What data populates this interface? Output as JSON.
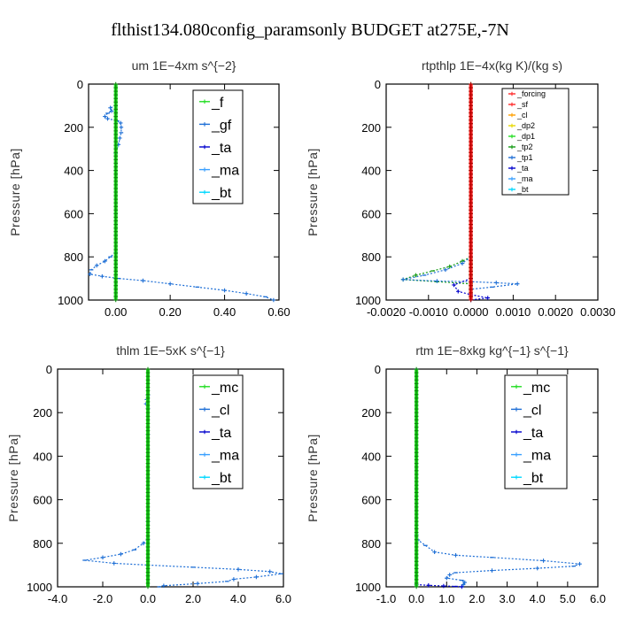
{
  "figure_title": "flthist134.080config_paramsonly  BUDGET at275E,-7N",
  "colors": {
    "green": "#22dd22",
    "blue": "#1e6fd6",
    "red": "#ff2a2a",
    "orange": "#ffa000",
    "yellow": "#e8d800",
    "navy": "#0000cc",
    "cyan": "#00d8ff",
    "dkgreen": "#129a12",
    "ltblue": "#3aa0ff"
  },
  "chart_data": [
    {
      "type": "line",
      "title": "um   1E−4xm s^{−2}",
      "ylabel": "Pressure [hPa]",
      "xlim": [
        -0.1,
        0.6
      ],
      "ylim": [
        1000,
        0
      ],
      "xticks": [
        0.0,
        0.2,
        0.4,
        0.6
      ],
      "xtick_labels": [
        "0.00",
        "0.20",
        "0.40",
        "0.60"
      ],
      "yticks": [
        0,
        200,
        400,
        600,
        800,
        1000
      ],
      "ytick_labels": [
        "0",
        "200",
        "400",
        "600",
        "800",
        "1000"
      ],
      "legend": [
        "_f",
        "_gf",
        "_ta",
        "_ma",
        "_bt"
      ],
      "legend_colors": [
        "green",
        "blue",
        "navy",
        "ltblue",
        "cyan"
      ],
      "legend_big": true,
      "series": [
        {
          "name": "_gf",
          "color": "blue",
          "points": [
            [
              0,
              100
            ],
            [
              -0.02,
              110
            ],
            [
              -0.015,
              125
            ],
            [
              -0.03,
              135
            ],
            [
              -0.04,
              150
            ],
            [
              -0.03,
              160
            ],
            [
              0.005,
              170
            ],
            [
              0.018,
              180
            ],
            [
              0.02,
              200
            ],
            [
              0.02,
              225
            ],
            [
              0.015,
              250
            ],
            [
              0.01,
              280
            ],
            [
              0,
              320
            ],
            [
              0,
              400
            ],
            [
              0,
              500
            ],
            [
              0,
              600
            ],
            [
              0,
              700
            ],
            [
              0,
              780
            ],
            [
              -0.02,
              800
            ],
            [
              -0.04,
              820
            ],
            [
              -0.07,
              840
            ],
            [
              -0.09,
              860
            ],
            [
              -0.095,
              880
            ],
            [
              -0.05,
              890
            ],
            [
              0.01,
              900
            ],
            [
              0.1,
              910
            ],
            [
              0.2,
              925
            ],
            [
              0.3,
              940
            ],
            [
              0.4,
              955
            ],
            [
              0.48,
              970
            ],
            [
              0.55,
              985
            ],
            [
              0.58,
              1000
            ]
          ]
        },
        {
          "name": "_f",
          "color": "green",
          "points": [
            [
              0,
              0
            ],
            [
              0,
              1000
            ]
          ]
        }
      ]
    },
    {
      "type": "line",
      "title": "rtpthlp   1E−4x(kg K)/(kg s)",
      "ylabel": "Pressure [hPa]",
      "xlim": [
        -0.002,
        0.003
      ],
      "ylim": [
        1000,
        0
      ],
      "xticks": [
        -0.002,
        -0.001,
        0.0,
        0.001,
        0.002,
        0.003
      ],
      "xtick_labels": [
        "-0.0020",
        "-0.0010",
        "0.0000",
        "0.0010",
        "0.0020",
        "0.0030"
      ],
      "yticks": [
        0,
        200,
        400,
        600,
        800,
        1000
      ],
      "ytick_labels": [
        "0",
        "200",
        "400",
        "600",
        "800",
        "1000"
      ],
      "legend": [
        "_forcing",
        "_sf",
        "_cl",
        "_dp2",
        "_dp1",
        "_tp2",
        "_tp1",
        "_ta",
        "_ma",
        "_bt"
      ],
      "legend_colors": [
        "red",
        "red",
        "orange",
        "yellow",
        "green",
        "dkgreen",
        "blue",
        "navy",
        "ltblue",
        "cyan"
      ],
      "legend_big": false,
      "series": [
        {
          "name": "_dp1",
          "color": "green",
          "points": [
            [
              0,
              800
            ],
            [
              0.0002,
              820
            ],
            [
              0.0006,
              845
            ],
            [
              0.0012,
              865
            ],
            [
              0.0019,
              880
            ],
            [
              0.0026,
              895
            ],
            [
              0.0016,
              905
            ],
            [
              0.0008,
              915
            ],
            [
              0.0003,
              930
            ],
            [
              -0.0004,
              945
            ],
            [
              -0.0009,
              960
            ],
            [
              -0.0004,
              980
            ],
            [
              0,
              1000
            ]
          ]
        },
        {
          "name": "_tp2",
          "color": "dkgreen",
          "points": [
            [
              0,
              800
            ],
            [
              -0.0002,
              820
            ],
            [
              -0.0005,
              845
            ],
            [
              -0.0009,
              865
            ],
            [
              -0.0013,
              885
            ],
            [
              -0.0016,
              905
            ],
            [
              -0.0008,
              915
            ],
            [
              0,
              925
            ]
          ]
        },
        {
          "name": "_tp1",
          "color": "blue",
          "points": [
            [
              0,
              800
            ],
            [
              -0.0002,
              830
            ],
            [
              -0.0006,
              860
            ],
            [
              -0.0011,
              885
            ],
            [
              -0.0016,
              905
            ],
            [
              -0.0008,
              912
            ],
            [
              0,
              915
            ],
            [
              0.0006,
              920
            ],
            [
              0.0011,
              925
            ],
            [
              0.0005,
              940
            ],
            [
              0,
              950
            ]
          ]
        },
        {
          "name": "_ta",
          "color": "navy",
          "points": [
            [
              0,
              900
            ],
            [
              -0.0004,
              930
            ],
            [
              -0.0003,
              960
            ],
            [
              0,
              975
            ],
            [
              0.0004,
              990
            ],
            [
              0,
              1000
            ]
          ]
        },
        {
          "name": "_forcing",
          "color": "red",
          "points": [
            [
              0,
              0
            ],
            [
              0,
              1000
            ]
          ]
        }
      ]
    },
    {
      "type": "line",
      "title": "thlm   1E−5xK s^{−1}",
      "ylabel": "Pressure [hPa]",
      "xlim": [
        -4,
        6
      ],
      "ylim": [
        1000,
        0
      ],
      "xticks": [
        -4,
        -2,
        0,
        2,
        4,
        6
      ],
      "xtick_labels": [
        "-4.0",
        "-2.0",
        "0.0",
        "2.0",
        "4.0",
        "6.0"
      ],
      "yticks": [
        0,
        200,
        400,
        600,
        800,
        1000
      ],
      "ytick_labels": [
        "0",
        "200",
        "400",
        "600",
        "800",
        "1000"
      ],
      "legend": [
        "_mc",
        "_cl",
        "_ta",
        "_ma",
        "_bt"
      ],
      "legend_colors": [
        "green",
        "blue",
        "navy",
        "ltblue",
        "cyan"
      ],
      "legend_big": true,
      "series": [
        {
          "name": "_cl",
          "color": "blue",
          "points": [
            [
              0,
              120
            ],
            [
              -0.05,
              140
            ],
            [
              -0.08,
              160
            ],
            [
              0,
              180
            ],
            [
              0,
              300
            ],
            [
              0,
              500
            ],
            [
              0,
              700
            ],
            [
              0,
              780
            ],
            [
              -0.2,
              800
            ],
            [
              -0.6,
              830
            ],
            [
              -1.2,
              850
            ],
            [
              -2.0,
              865
            ],
            [
              -2.8,
              878
            ],
            [
              -1.5,
              892
            ],
            [
              0,
              900
            ],
            [
              2.0,
              910
            ],
            [
              4.0,
              920
            ],
            [
              5.4,
              930
            ],
            [
              5.9,
              940
            ],
            [
              4.8,
              955
            ],
            [
              3.8,
              965
            ],
            [
              3.5,
              975
            ],
            [
              2.2,
              985
            ],
            [
              0.7,
              995
            ],
            [
              0.5,
              1000
            ]
          ]
        },
        {
          "name": "_mc",
          "color": "green",
          "points": [
            [
              0,
              0
            ],
            [
              0,
              1000
            ]
          ]
        }
      ]
    },
    {
      "type": "line",
      "title": "rtm   1E−8xkg kg^{−1} s^{−1}",
      "ylabel": "Pressure [hPa]",
      "xlim": [
        -1,
        6
      ],
      "ylim": [
        1000,
        0
      ],
      "xticks": [
        -1,
        0,
        1,
        2,
        3,
        4,
        5,
        6
      ],
      "xtick_labels": [
        "-1.0",
        "0.0",
        "1.0",
        "2.0",
        "3.0",
        "4.0",
        "5.0",
        "6.0"
      ],
      "yticks": [
        0,
        200,
        400,
        600,
        800,
        1000
      ],
      "ytick_labels": [
        "0",
        "200",
        "400",
        "600",
        "800",
        "1000"
      ],
      "legend": [
        "_mc",
        "_cl",
        "_ta",
        "_ma",
        "_bt"
      ],
      "legend_colors": [
        "green",
        "blue",
        "navy",
        "ltblue",
        "cyan"
      ],
      "legend_big": true,
      "series": [
        {
          "name": "_cl",
          "color": "blue",
          "points": [
            [
              0,
              0
            ],
            [
              0,
              760
            ],
            [
              0.05,
              785
            ],
            [
              0.3,
              810
            ],
            [
              0.6,
              840
            ],
            [
              1.3,
              855
            ],
            [
              2.5,
              865
            ],
            [
              4.2,
              880
            ],
            [
              5.4,
              895
            ],
            [
              5.2,
              905
            ],
            [
              4.0,
              915
            ],
            [
              2.5,
              925
            ],
            [
              1.3,
              935
            ],
            [
              1.1,
              945
            ],
            [
              1.0,
              960
            ],
            [
              1.5,
              970
            ],
            [
              1.6,
              980
            ],
            [
              1.55,
              990
            ],
            [
              1.5,
              1000
            ]
          ]
        },
        {
          "name": "_ta",
          "color": "navy",
          "points": [
            [
              0,
              990
            ],
            [
              0.4,
              993
            ],
            [
              0.9,
              996
            ],
            [
              1.3,
              998
            ],
            [
              1.5,
              1000
            ]
          ]
        },
        {
          "name": "_mc",
          "color": "green",
          "points": [
            [
              0,
              0
            ],
            [
              0,
              1000
            ]
          ]
        }
      ]
    }
  ]
}
